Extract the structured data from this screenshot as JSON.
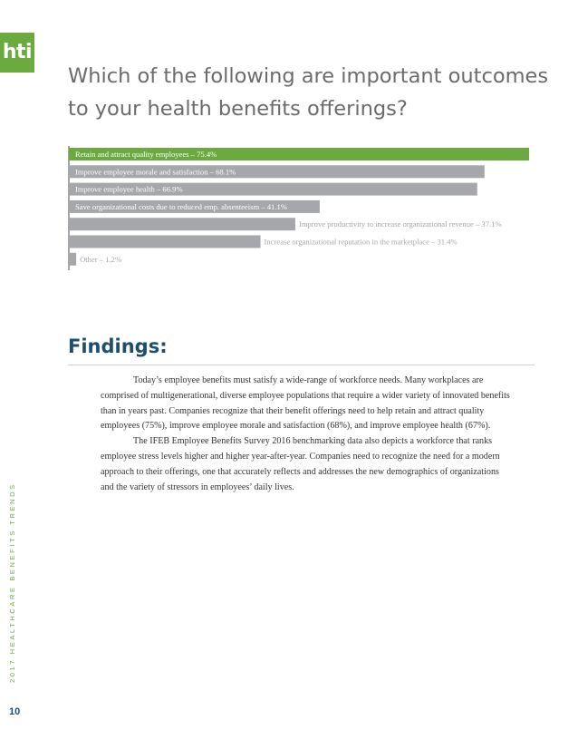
{
  "logo_text": "hti",
  "page_title": "Which of the following are important outcomes to your health benefits offerings?",
  "chart_data": {
    "type": "bar",
    "orientation": "horizontal",
    "categories": [
      "Retain and attract quality employees",
      "Improve employee morale and satisfaction",
      "Improve employee health",
      "Save organizational costs due to reduced emp. absenteeism",
      "Improve productivity to increase organizational revenue",
      "Increase organizational reputation in the marketplace",
      "Other"
    ],
    "values": [
      75.4,
      68.1,
      66.9,
      41.1,
      37.1,
      31.4,
      1.2
    ],
    "labels": [
      "Retain and attract quality employees – 75.4%",
      "Improve employee morale and satisfaction – 68.1%",
      "Improve employee health – 66.9%",
      "Save organizational costs due to reduced emp. absenteeism – 41.1%",
      "Improve productivity to increase organizational revenue – 37.1%",
      "Increase organizational reputation in the marketplace – 31.4%",
      "Other – 1.2%"
    ],
    "xlim": [
      0,
      75.4
    ],
    "highlight_color": "#6aaa3f",
    "bar_color": "#a6a7aa",
    "label_color_inside": "#ffffff",
    "label_color_outside": "#a6a7aa",
    "grid": false
  },
  "findings": {
    "heading": "Findings:",
    "paragraphs": [
      "Today’s employee benefits must satisfy a wide-range of workforce needs. Many workplaces are comprised of multigenerational, diverse employee populations that require a wider variety of innovated benefits than in years past. Companies recognize that their benefit offerings need to help retain and attract quality employees (75%), improve employee morale and satisfaction (68%), and improve employee health (67%).",
      "The IFEB Employee Benefits Survey 2016 benchmarking data also depicts a workforce that ranks employee stress levels higher and higher year-after-year. Companies need to recognize the need for a modern approach to their offerings, one that accurately reflects and addresses the new demographics of organizations and the variety of stressors in employees’ daily lives."
    ]
  },
  "side_label": "2017 HEALTHCARE BENEFITS TRENDS",
  "page_number": "10"
}
